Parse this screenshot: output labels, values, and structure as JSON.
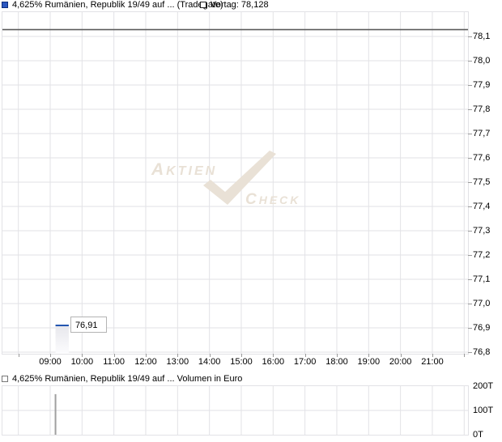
{
  "chart": {
    "legend": {
      "series_label": "4,625% Rumänien, Republik 19/49 auf ... (Tradegate)",
      "vortag_label": "Vortag: 78,128"
    },
    "volume_legend_label": "4,625% Rumänien, Republik 19/49 auf ... Volumen in Euro",
    "point_label": "76,91"
  },
  "watermark": {
    "word1": "AKTIEN",
    "word2": "CHECK"
  },
  "colors": {
    "series_swatch_fill": "#2b57c0",
    "series_swatch_border": "#0d2f7d",
    "price_line": "#2356b0",
    "previous_close_line": "#5c5c5c",
    "grid": "#e2e2e6",
    "volume_bar": "#a0a0a0",
    "watermark": "#e9e1d6",
    "area_fill_top": "#e7e7ec",
    "area_fill_bottom": "#fbfbfd",
    "label_box_border": "#b4b4b4"
  },
  "chart_data": [
    {
      "type": "line",
      "title": "4,625% Rumänien, Republik 19/49 auf ... (Tradegate)",
      "exchange_note": "Tradegate",
      "previous_close": 78.128,
      "previous_close_label": "Vortag: 78,128",
      "grid": true,
      "legend_position": "top-left",
      "y_axis": {
        "side": "right",
        "ticks": [
          78.1,
          78.0,
          77.9,
          77.8,
          77.7,
          77.6,
          77.5,
          77.4,
          77.3,
          77.2,
          77.1,
          77.0,
          76.9,
          76.8
        ],
        "tick_labels": [
          "78,1",
          "78,0",
          "77,9",
          "77,8",
          "77,7",
          "77,6",
          "77,5",
          "77,4",
          "77,3",
          "77,2",
          "77,1",
          "77,0",
          "76,9",
          "76,8"
        ],
        "ylim": [
          76.79,
          78.2
        ]
      },
      "x_axis": {
        "tick_labels": [
          "09:00",
          "10:00",
          "11:00",
          "12:00",
          "13:00",
          "14:00",
          "15:00",
          "16:00",
          "17:00",
          "18:00",
          "19:00",
          "20:00",
          "21:00"
        ],
        "grid_hours": [
          8,
          9,
          10,
          11,
          12,
          13,
          14,
          15,
          16,
          17,
          18,
          19,
          20,
          21,
          22
        ],
        "xlim_hours": [
          7.5,
          22.12
        ]
      },
      "series": [
        {
          "name": "4,625% Rumänien, Republik 19/49",
          "points": [
            {
              "time": "09:10",
              "value": 76.91
            },
            {
              "time": "09:35",
              "value": 76.91
            }
          ],
          "last_value_label": "76,91"
        }
      ]
    },
    {
      "type": "bar",
      "title": "4,625% Rumänien, Republik 19/49 auf ... Volumen in Euro",
      "ylabel": "Volumen in Euro",
      "y_axis": {
        "side": "right",
        "ticks": [
          0,
          100,
          200
        ],
        "tick_labels": [
          "0T",
          "100T",
          "200T"
        ],
        "ylim": [
          0,
          200
        ]
      },
      "x_axis": {
        "grid_hours": [
          8,
          9,
          10,
          11,
          12,
          13,
          14,
          15,
          16,
          17,
          18,
          19,
          20,
          21,
          22
        ],
        "xlim_hours": [
          7.5,
          22.12
        ]
      },
      "bars": [
        {
          "time": "09:10",
          "value_thousand": 167
        }
      ]
    }
  ]
}
